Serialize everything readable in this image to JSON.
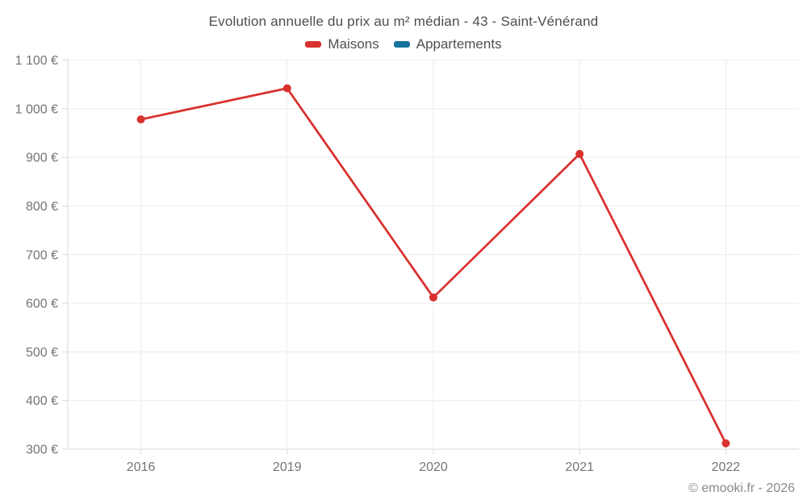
{
  "footer": "© emooki.fr - 2026",
  "chart_data": {
    "type": "line",
    "title": "Evolution annuelle du prix au m² médian - 43 - Saint-Vénérand",
    "categories": [
      "2016",
      "2019",
      "2020",
      "2021",
      "2022"
    ],
    "series": [
      {
        "name": "Maisons",
        "color": "#d8312f",
        "values": [
          978,
          1042,
          612,
          907,
          312
        ]
      },
      {
        "name": "Appartements",
        "color": "#17739e",
        "values": []
      }
    ],
    "xlabel": "",
    "ylabel": "",
    "ylim": [
      300,
      1100
    ],
    "y_ticks": [
      {
        "value": 300,
        "label": "300 €"
      },
      {
        "value": 400,
        "label": "400 €"
      },
      {
        "value": 500,
        "label": "500 €"
      },
      {
        "value": 600,
        "label": "600 €"
      },
      {
        "value": 700,
        "label": "700 €"
      },
      {
        "value": 800,
        "label": "800 €"
      },
      {
        "value": 900,
        "label": "900 €"
      },
      {
        "value": 1000,
        "label": "1 000 €"
      },
      {
        "value": 1100,
        "label": "1 100 €"
      }
    ],
    "grid": true,
    "legend_position": "top",
    "colors": {
      "grid_line": "#ececec",
      "axis_line": "#d9d9d9",
      "tick_label": "#757575",
      "title_text": "#4d4d4d",
      "footer_text": "#8a8a8a"
    }
  }
}
